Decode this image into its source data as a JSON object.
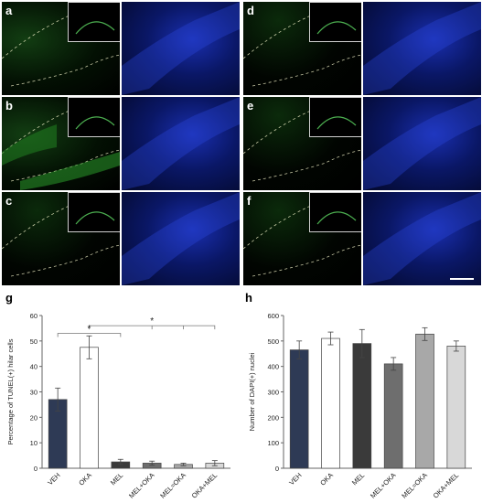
{
  "micrograph_labels": [
    "a",
    "b",
    "c",
    "d",
    "e",
    "f"
  ],
  "chart_data": [
    {
      "label": "g",
      "type": "bar",
      "categories": [
        "VEH",
        "OKA",
        "MEL",
        "MEL+OKA",
        "MEL=OKA",
        "OKA+MEL"
      ],
      "values": [
        27,
        47.5,
        2.5,
        2,
        1.5,
        2
      ],
      "errors": [
        4.5,
        4.5,
        1,
        0.8,
        0.5,
        1
      ],
      "colors": [
        "#2e3a55",
        "#ffffff",
        "#3a3a3a",
        "#6e6e6e",
        "#a8a8a8",
        "#d8d8d8"
      ],
      "ylabel": "Percentage of TUNEL(+) hilar cells",
      "ylim": [
        0,
        60
      ],
      "yticks": [
        0,
        10,
        20,
        30,
        40,
        50,
        60
      ],
      "significance": [
        "*",
        "*"
      ]
    },
    {
      "label": "h",
      "type": "bar",
      "categories": [
        "VEH",
        "OKA",
        "MEL",
        "MEL+OKA",
        "MEL=OKA",
        "OKA+MEL"
      ],
      "values": [
        465,
        510,
        490,
        410,
        527,
        480
      ],
      "errors": [
        35,
        25,
        55,
        25,
        25,
        20
      ],
      "colors": [
        "#2e3a55",
        "#ffffff",
        "#3a3a3a",
        "#6e6e6e",
        "#a8a8a8",
        "#d8d8d8"
      ],
      "ylabel": "Number of DAPI(+) nuclei",
      "ylim": [
        0,
        600
      ],
      "yticks": [
        0,
        100,
        200,
        300,
        400,
        500,
        600
      ]
    }
  ]
}
